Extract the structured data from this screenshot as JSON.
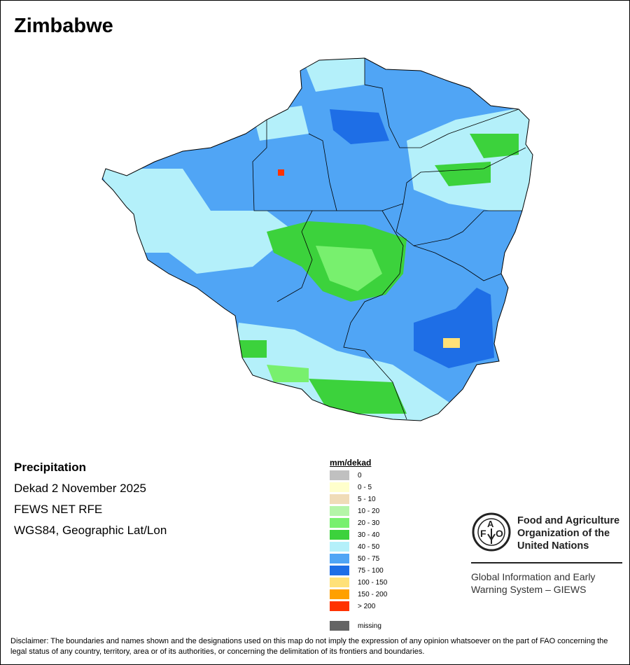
{
  "title": "Zimbabwe",
  "info": {
    "variable": "Precipitation",
    "period": "Dekad 2 November 2025",
    "source": "FEWS NET RFE",
    "projection": "WGS84, Geographic Lat/Lon"
  },
  "legend": {
    "title": "mm/dekad",
    "items": [
      {
        "label": "0",
        "color": "#c0c0c0"
      },
      {
        "label": "0 - 5",
        "color": "#ffffcc"
      },
      {
        "label": "5 - 10",
        "color": "#f0dcb8"
      },
      {
        "label": "10 - 20",
        "color": "#b4f5a8"
      },
      {
        "label": "20 - 30",
        "color": "#78f06e"
      },
      {
        "label": "30 - 40",
        "color": "#3cd23c"
      },
      {
        "label": "40 - 50",
        "color": "#b4f0fa"
      },
      {
        "label": "50 - 75",
        "color": "#50a5f5"
      },
      {
        "label": "75 - 100",
        "color": "#1e6ee6"
      },
      {
        "label": "100 - 150",
        "color": "#ffe178"
      },
      {
        "label": "150 - 200",
        "color": "#ffa000"
      },
      {
        "label": "> 200",
        "color": "#ff3200"
      }
    ],
    "missing": {
      "label": "missing",
      "color": "#646464"
    }
  },
  "logo": {
    "letters": "FAO",
    "motto": "FIAT PANIS",
    "org_name": "Food and Agriculture Organization of the United Nations",
    "system": "Global Information and Early Warning System – GIEWS"
  },
  "disclaimer": "Disclaimer: The boundaries and names shown and the designations used on this map do not imply the expression of any opinion whatsoever on the part of FAO concerning the legal status of any country, territory, area or of its authorities, or concerning the delimitation of its frontiers and boundaries."
}
